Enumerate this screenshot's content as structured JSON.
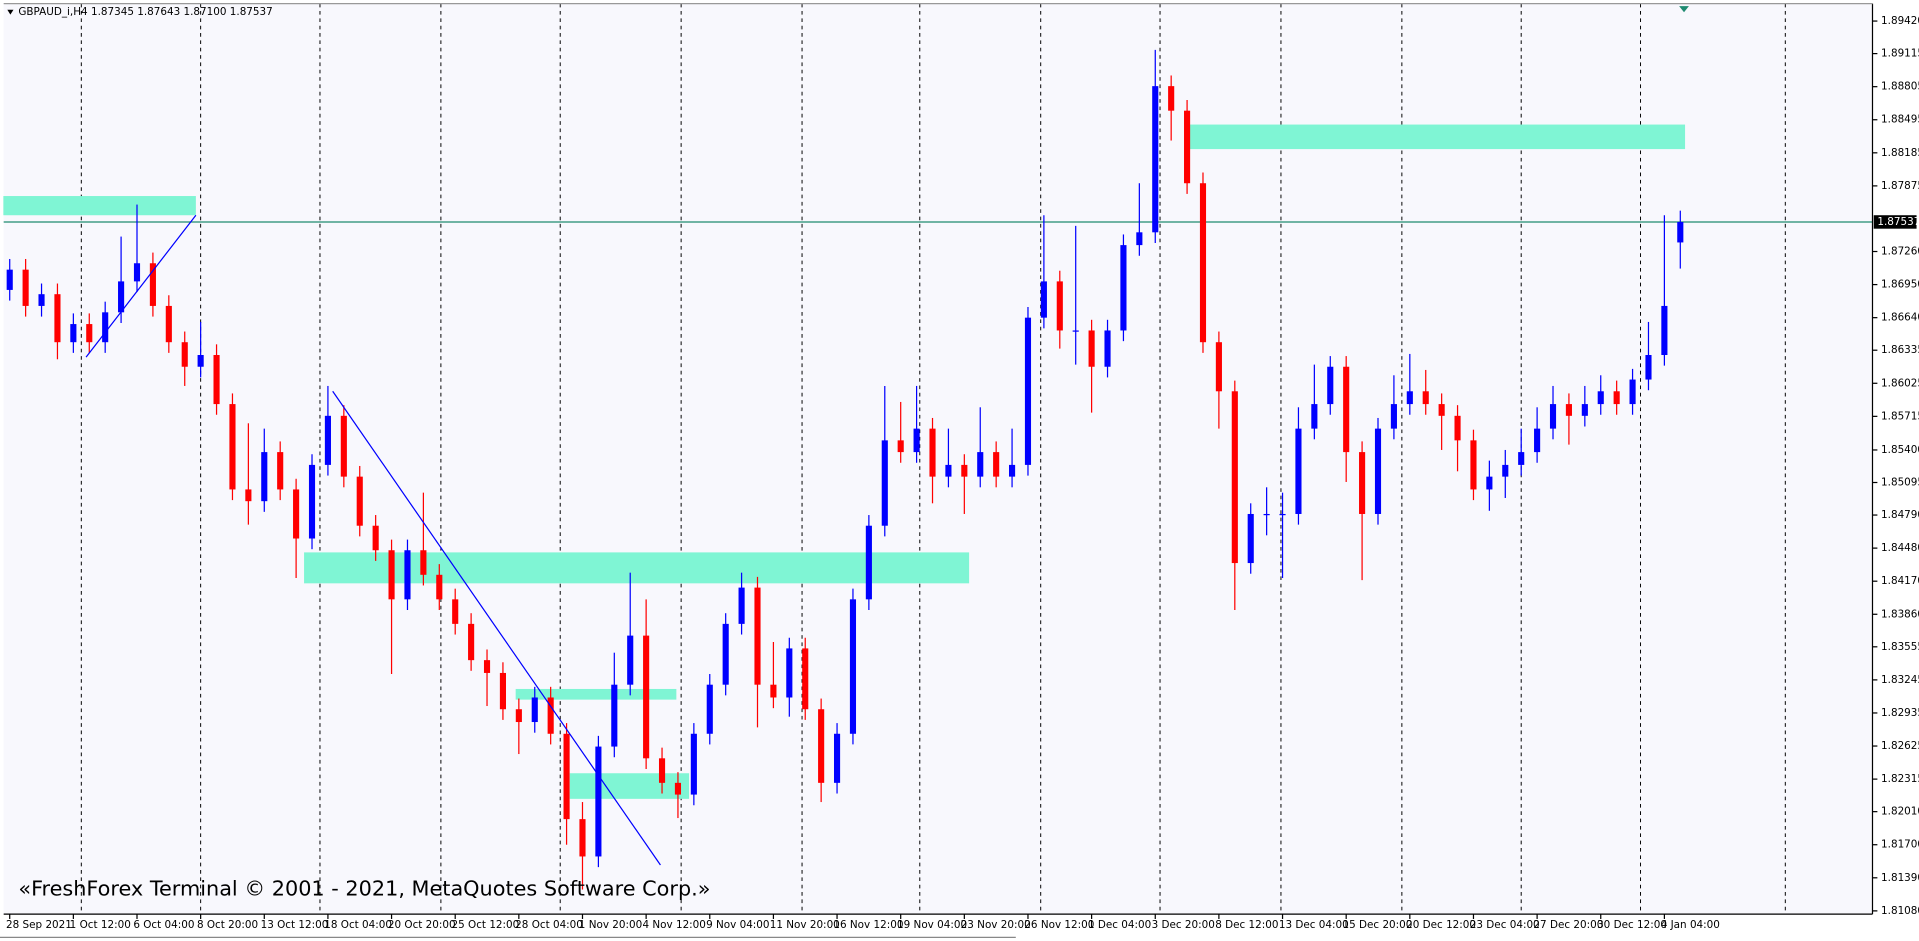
{
  "chart_data": {
    "type": "candlestick",
    "title": "GBPAUD_i,H4  1.87345 1.87643 1.87100 1.87537",
    "watermark": "«FreshForex Terminal © 2001 - 2021, MetaQuotes Software Corp.»",
    "up_color": "#0000ff",
    "down_color": "#ff0000",
    "zone_color": "#7ff5d4",
    "line_color": "#0000ff",
    "price_line_color": "#1f8a70",
    "xlim": [
      -0.38,
      117.08
    ],
    "ylim": [
      1.8105,
      1.8956
    ],
    "open": [
      1.869,
      1.8709,
      1.8675,
      1.8686,
      1.8641,
      1.8658,
      1.8641,
      1.8669,
      1.8698,
      1.8715,
      1.8675,
      1.8641,
      1.8618,
      1.8629,
      1.8583,
      1.8503,
      1.8492,
      1.8538,
      1.8503,
      1.8457,
      1.8526,
      1.8572,
      1.8515,
      1.8469,
      1.8446,
      1.84,
      1.8446,
      1.8423,
      1.84,
      1.8377,
      1.8343,
      1.8331,
      1.8297,
      1.8285,
      1.8308,
      1.8274,
      1.8194,
      1.8159,
      1.8262,
      1.832,
      1.8366,
      1.8251,
      1.8228,
      1.8217,
      1.8274,
      1.832,
      1.8377,
      1.8411,
      1.832,
      1.8308,
      1.8354,
      1.8297,
      1.8228,
      1.8274,
      1.84,
      1.8469,
      1.8549,
      1.8538,
      1.856,
      1.8515,
      1.8526,
      1.8515,
      1.8538,
      1.8515,
      1.8526,
      1.8664,
      1.8698,
      1.8652,
      1.8652,
      1.8618,
      1.8652,
      1.8732,
      1.8744,
      1.8881,
      1.8858,
      1.879,
      1.8641,
      1.8595,
      1.8434,
      1.848,
      1.848,
      1.848,
      1.856,
      1.8583,
      1.8618,
      1.8538,
      1.848,
      1.856,
      1.8583,
      1.8595,
      1.8583,
      1.8572,
      1.8549,
      1.8503,
      1.8515,
      1.8526,
      1.8538,
      1.856,
      1.8583,
      1.8572,
      1.8583,
      1.8595,
      1.8583,
      1.8606,
      1.8629,
      1.87345
    ],
    "high": [
      1.8719,
      1.8719,
      1.8696,
      1.8696,
      1.8668,
      1.8668,
      1.8679,
      1.874,
      1.877,
      1.8725,
      1.8685,
      1.8651,
      1.866,
      1.8639,
      1.8593,
      1.8565,
      1.856,
      1.8548,
      1.8513,
      1.8536,
      1.86,
      1.8582,
      1.8525,
      1.8479,
      1.8456,
      1.8456,
      1.85,
      1.8433,
      1.841,
      1.8387,
      1.8353,
      1.8341,
      1.8307,
      1.8318,
      1.8318,
      1.8284,
      1.821,
      1.8272,
      1.835,
      1.8425,
      1.84,
      1.8261,
      1.8238,
      1.8284,
      1.833,
      1.8387,
      1.8425,
      1.8421,
      1.836,
      1.8364,
      1.8364,
      1.8307,
      1.8284,
      1.841,
      1.8479,
      1.86,
      1.8585,
      1.86,
      1.857,
      1.856,
      1.8536,
      1.858,
      1.8548,
      1.856,
      1.8674,
      1.876,
      1.8708,
      1.875,
      1.8662,
      1.8662,
      1.8742,
      1.879,
      1.8915,
      1.8891,
      1.8868,
      1.88,
      1.8651,
      1.8605,
      1.849,
      1.8505,
      1.85,
      1.858,
      1.862,
      1.8628,
      1.8628,
      1.8548,
      1.857,
      1.861,
      1.863,
      1.8615,
      1.8593,
      1.8582,
      1.8559,
      1.853,
      1.854,
      1.856,
      1.858,
      1.86,
      1.8593,
      1.86,
      1.861,
      1.8605,
      1.8616,
      1.866,
      1.876,
      1.87643
    ],
    "low": [
      1.868,
      1.8665,
      1.8665,
      1.8625,
      1.8631,
      1.8631,
      1.8631,
      1.8659,
      1.8688,
      1.8665,
      1.8631,
      1.86,
      1.8608,
      1.8573,
      1.8493,
      1.847,
      1.8482,
      1.8493,
      1.842,
      1.8447,
      1.8516,
      1.8505,
      1.8459,
      1.8436,
      1.833,
      1.839,
      1.8413,
      1.839,
      1.8367,
      1.8333,
      1.83,
      1.8287,
      1.8255,
      1.8275,
      1.8264,
      1.817,
      1.8128,
      1.8149,
      1.8252,
      1.831,
      1.8241,
      1.8218,
      1.8195,
      1.8207,
      1.8264,
      1.831,
      1.8367,
      1.828,
      1.8298,
      1.829,
      1.8287,
      1.821,
      1.8218,
      1.8264,
      1.839,
      1.8459,
      1.8528,
      1.8528,
      1.849,
      1.8505,
      1.848,
      1.8505,
      1.8505,
      1.8505,
      1.8516,
      1.8654,
      1.8635,
      1.862,
      1.8575,
      1.8608,
      1.8642,
      1.8722,
      1.8734,
      1.883,
      1.878,
      1.8631,
      1.856,
      1.839,
      1.8424,
      1.846,
      1.842,
      1.847,
      1.855,
      1.8573,
      1.851,
      1.8418,
      1.847,
      1.855,
      1.8573,
      1.8573,
      1.854,
      1.852,
      1.8493,
      1.8483,
      1.8495,
      1.8516,
      1.8528,
      1.855,
      1.8545,
      1.8562,
      1.8573,
      1.8573,
      1.8573,
      1.8596,
      1.8619,
      1.871
    ],
    "close": [
      1.8709,
      1.8675,
      1.8686,
      1.8641,
      1.8658,
      1.8641,
      1.8669,
      1.8698,
      1.8715,
      1.8675,
      1.8641,
      1.8618,
      1.8629,
      1.8583,
      1.8503,
      1.8492,
      1.8538,
      1.8503,
      1.8457,
      1.8526,
      1.8572,
      1.8515,
      1.8469,
      1.8446,
      1.84,
      1.8446,
      1.8423,
      1.84,
      1.8377,
      1.8343,
      1.8331,
      1.8297,
      1.8285,
      1.8308,
      1.8274,
      1.8194,
      1.8159,
      1.8262,
      1.832,
      1.8366,
      1.8251,
      1.8228,
      1.8217,
      1.8274,
      1.832,
      1.8377,
      1.8411,
      1.832,
      1.8308,
      1.8354,
      1.8297,
      1.8228,
      1.8274,
      1.84,
      1.8469,
      1.8549,
      1.8538,
      1.856,
      1.8515,
      1.8526,
      1.8515,
      1.8538,
      1.8515,
      1.8526,
      1.8664,
      1.8698,
      1.8652,
      1.8652,
      1.8618,
      1.8652,
      1.8732,
      1.8744,
      1.8881,
      1.8858,
      1.879,
      1.8641,
      1.8595,
      1.8434,
      1.848,
      1.848,
      1.848,
      1.856,
      1.8583,
      1.8618,
      1.8538,
      1.848,
      1.856,
      1.8583,
      1.8595,
      1.8583,
      1.8572,
      1.8549,
      1.8503,
      1.8515,
      1.8526,
      1.8538,
      1.856,
      1.8583,
      1.8572,
      1.8583,
      1.8595,
      1.8583,
      1.8606,
      1.8629,
      1.8675,
      1.87537
    ],
    "current_price": 1.87537,
    "zones": [
      {
        "x": [
          -0.4,
          11.7
        ],
        "y": [
          1.876,
          1.8778
        ]
      },
      {
        "x": [
          74.1,
          105.3
        ],
        "y": [
          1.8822,
          1.8845
        ]
      },
      {
        "x": [
          18.5,
          60.3
        ],
        "y": [
          1.8415,
          1.8444
        ]
      },
      {
        "x": [
          31.8,
          41.9
        ],
        "y": [
          1.8306,
          1.8316
        ]
      },
      {
        "x": [
          35.2,
          42.7
        ],
        "y": [
          1.8213,
          1.8237
        ]
      }
    ],
    "trendlines": [
      {
        "x": [
          4.8,
          11.7
        ],
        "y": [
          1.8627,
          1.876
        ]
      },
      {
        "x": [
          20.3,
          40.9
        ],
        "y": [
          1.8595,
          1.8151
        ]
      }
    ],
    "xgrid": [
      4.5,
      12,
      19.5,
      27.1,
      34.6,
      42.2,
      49.8,
      57.2,
      64.8,
      72.3,
      79.9,
      87.5,
      95,
      102.5,
      111.6
    ],
    "xticks": [
      {
        "value": 0,
        "label": "28 Sep 2021"
      },
      {
        "value": 4,
        "label": "1 Oct 12:00"
      },
      {
        "value": 8,
        "label": "6 Oct 04:00"
      },
      {
        "value": 12,
        "label": "8 Oct 20:00"
      },
      {
        "value": 16,
        "label": "13 Oct 12:00"
      },
      {
        "value": 20,
        "label": "18 Oct 04:00"
      },
      {
        "value": 24,
        "label": "20 Oct 20:00"
      },
      {
        "value": 28,
        "label": "25 Oct 12:00"
      },
      {
        "value": 32,
        "label": "28 Oct 04:00"
      },
      {
        "value": 36,
        "label": "1 Nov 20:00"
      },
      {
        "value": 40,
        "label": "4 Nov 12:00"
      },
      {
        "value": 44,
        "label": "9 Nov 04:00"
      },
      {
        "value": 48,
        "label": "11 Nov 20:00"
      },
      {
        "value": 52,
        "label": "16 Nov 12:00"
      },
      {
        "value": 56,
        "label": "19 Nov 04:00"
      },
      {
        "value": 60,
        "label": "23 Nov 20:00"
      },
      {
        "value": 64,
        "label": "26 Nov 12:00"
      },
      {
        "value": 68,
        "label": "1 Dec 04:00"
      },
      {
        "value": 72,
        "label": "3 Dec 20:00"
      },
      {
        "value": 76,
        "label": "8 Dec 12:00"
      },
      {
        "value": 80,
        "label": "13 Dec 04:00"
      },
      {
        "value": 84,
        "label": "15 Dec 20:00"
      },
      {
        "value": 88,
        "label": "20 Dec 12:00"
      },
      {
        "value": 92,
        "label": "23 Dec 04:00"
      },
      {
        "value": 96,
        "label": "27 Dec 20:00"
      },
      {
        "value": 100,
        "label": "30 Dec 12:00"
      },
      {
        "value": 104,
        "label": "4 Jan 04:00"
      }
    ],
    "yticks": [
      {
        "value": 1.8942,
        "label": "1.89420"
      },
      1.89115,
      1.88805,
      1.88495,
      1.88185,
      1.87875,
      {
        "value": 1.8726,
        "label": "1.87260"
      },
      {
        "value": 1.8695,
        "label": "1.86950"
      },
      {
        "value": 1.8664,
        "label": "1.86640"
      },
      1.86335,
      1.86025,
      1.85715,
      {
        "value": 1.854,
        "label": "1.85400"
      },
      1.85095,
      {
        "value": 1.8479,
        "label": "1.84790"
      },
      {
        "value": 1.8448,
        "label": "1.84480"
      },
      {
        "value": 1.8417,
        "label": "1.84170"
      },
      {
        "value": 1.8386,
        "label": "1.83860"
      },
      1.83555,
      1.83245,
      1.82935,
      1.82625,
      1.82315,
      {
        "value": 1.8201,
        "label": "1.82010"
      },
      {
        "value": 1.817,
        "label": "1.81700"
      },
      {
        "value": 1.8139,
        "label": "1.81390"
      },
      {
        "value": 1.8108,
        "label": "1.81080"
      }
    ]
  }
}
